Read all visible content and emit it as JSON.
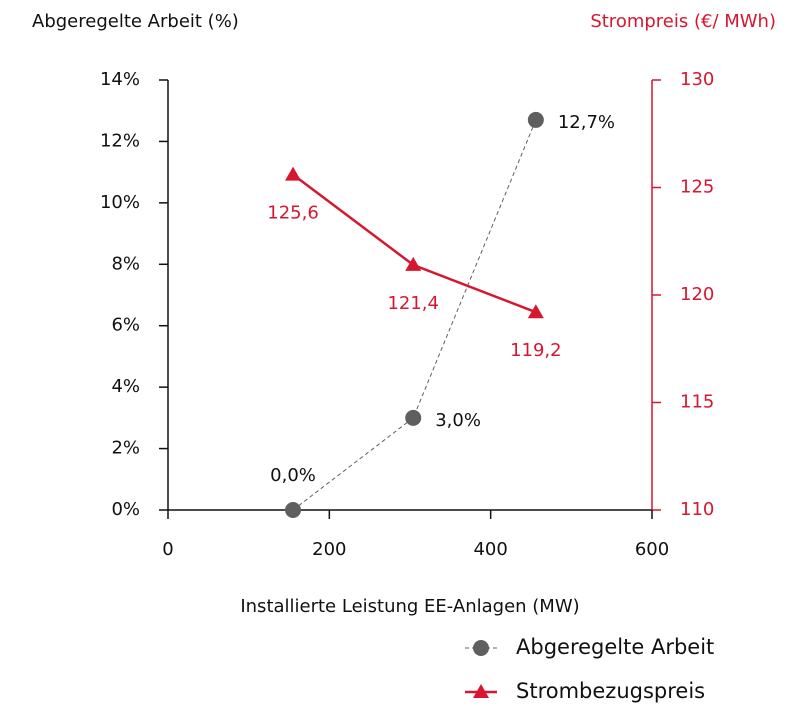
{
  "chart_data": {
    "type": "line",
    "y_axis_label": "Abgeregelte Arbeit (%)",
    "y2_axis_label": "Strompreis (€/ MWh)",
    "x_axis_label": "Installierte Leistung EE-Anlagen (MW)",
    "xlim": [
      0,
      600
    ],
    "xticks": [
      0,
      200,
      400,
      600
    ],
    "ylim": [
      0,
      14
    ],
    "yticks": [
      {
        "value": 0,
        "label": "0%"
      },
      {
        "value": 2,
        "label": "2%"
      },
      {
        "value": 4,
        "label": "4%"
      },
      {
        "value": 6,
        "label": "6%"
      },
      {
        "value": 8,
        "label": "8%"
      },
      {
        "value": 10,
        "label": "10%"
      },
      {
        "value": 12,
        "label": "12%"
      },
      {
        "value": 14,
        "label": "14%"
      }
    ],
    "y2lim": [
      110,
      130
    ],
    "y2ticks": [
      110,
      115,
      120,
      125,
      130
    ],
    "series": [
      {
        "name": "Abgeregelte Arbeit",
        "color": "#5f5f5f",
        "x": [
          155,
          304,
          456
        ],
        "values": [
          0,
          3.0,
          12.7
        ],
        "value_labels": [
          "0,0%",
          "3,0%",
          "12,7%"
        ]
      },
      {
        "name": "Strombezugspreis",
        "color": "#d7172f",
        "axis": "y2",
        "x": [
          155,
          304,
          456
        ],
        "values": [
          125.6,
          121.4,
          119.2
        ],
        "value_labels": [
          "125,6",
          "121,4",
          "119,2"
        ]
      }
    ]
  }
}
